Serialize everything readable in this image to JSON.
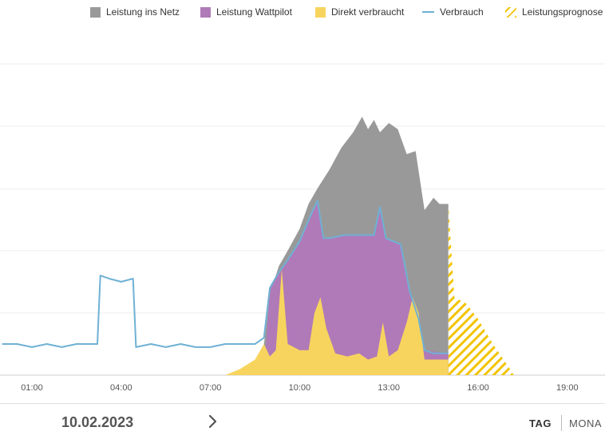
{
  "legend": {
    "items": [
      {
        "label": "Leistung ins Netz",
        "color": "#999999",
        "kind": "box"
      },
      {
        "label": "Leistung Wattpilot",
        "color": "#b07ab8",
        "kind": "box"
      },
      {
        "label": "Direkt verbraucht",
        "color": "#f7d45e",
        "kind": "box"
      },
      {
        "label": "Verbrauch",
        "color": "#6fb1d4",
        "kind": "line"
      },
      {
        "label": "Leistungsprognose",
        "color": "#f2c400",
        "kind": "hatch"
      }
    ]
  },
  "chart_data": {
    "type": "area",
    "x_ticks": [
      "01:00",
      "04:00",
      "07:00",
      "10:00",
      "13:00",
      "16:00",
      "19:00"
    ],
    "xlim": [
      "00:00",
      "20:20"
    ],
    "grid": true,
    "series": [
      {
        "name": "Verbrauch",
        "kind": "line",
        "color": "#6fb1d4",
        "points": [
          [
            0.0,
            0.1
          ],
          [
            0.5,
            0.1
          ],
          [
            1.0,
            0.09
          ],
          [
            1.5,
            0.1
          ],
          [
            2.0,
            0.09
          ],
          [
            2.5,
            0.1
          ],
          [
            3.0,
            0.1
          ],
          [
            3.2,
            0.1
          ],
          [
            3.3,
            0.32
          ],
          [
            3.6,
            0.31
          ],
          [
            4.0,
            0.3
          ],
          [
            4.4,
            0.31
          ],
          [
            4.5,
            0.09
          ],
          [
            5.0,
            0.1
          ],
          [
            5.5,
            0.09
          ],
          [
            6.0,
            0.1
          ],
          [
            6.5,
            0.09
          ],
          [
            7.0,
            0.09
          ],
          [
            7.5,
            0.1
          ],
          [
            8.0,
            0.1
          ],
          [
            8.5,
            0.1
          ],
          [
            8.8,
            0.12
          ],
          [
            9.0,
            0.28
          ],
          [
            9.3,
            0.33
          ],
          [
            9.6,
            0.37
          ],
          [
            10.0,
            0.43
          ],
          [
            10.4,
            0.52
          ],
          [
            10.6,
            0.56
          ],
          [
            10.8,
            0.44
          ],
          [
            11.0,
            0.44
          ],
          [
            11.5,
            0.45
          ],
          [
            12.0,
            0.45
          ],
          [
            12.5,
            0.45
          ],
          [
            12.7,
            0.54
          ],
          [
            12.9,
            0.44
          ],
          [
            13.4,
            0.42
          ],
          [
            13.7,
            0.27
          ],
          [
            14.0,
            0.18
          ],
          [
            14.2,
            0.08
          ],
          [
            14.5,
            0.07
          ],
          [
            15.0,
            0.07
          ]
        ]
      },
      {
        "name": "Direkt verbraucht",
        "kind": "area",
        "color": "#f7d45e",
        "points": [
          [
            7.5,
            0.0
          ],
          [
            8.0,
            0.02
          ],
          [
            8.5,
            0.05
          ],
          [
            8.8,
            0.1
          ],
          [
            9.0,
            0.06
          ],
          [
            9.2,
            0.08
          ],
          [
            9.4,
            0.34
          ],
          [
            9.6,
            0.1
          ],
          [
            10.0,
            0.08
          ],
          [
            10.3,
            0.08
          ],
          [
            10.5,
            0.2
          ],
          [
            10.7,
            0.25
          ],
          [
            10.9,
            0.15
          ],
          [
            11.2,
            0.07
          ],
          [
            11.6,
            0.06
          ],
          [
            12.0,
            0.07
          ],
          [
            12.3,
            0.05
          ],
          [
            12.6,
            0.06
          ],
          [
            12.8,
            0.17
          ],
          [
            13.0,
            0.06
          ],
          [
            13.3,
            0.08
          ],
          [
            13.6,
            0.17
          ],
          [
            13.8,
            0.25
          ],
          [
            14.0,
            0.2
          ],
          [
            14.2,
            0.05
          ],
          [
            14.5,
            0.05
          ],
          [
            15.0,
            0.05
          ]
        ]
      },
      {
        "name": "Leistung Wattpilot",
        "kind": "area",
        "color": "#b07ab8",
        "points": [
          [
            8.8,
            0.0
          ],
          [
            9.0,
            0.28
          ],
          [
            9.3,
            0.33
          ],
          [
            9.6,
            0.37
          ],
          [
            10.0,
            0.43
          ],
          [
            10.4,
            0.52
          ],
          [
            10.6,
            0.56
          ],
          [
            10.8,
            0.44
          ],
          [
            11.0,
            0.44
          ],
          [
            11.5,
            0.45
          ],
          [
            12.0,
            0.45
          ],
          [
            12.5,
            0.45
          ],
          [
            12.7,
            0.54
          ],
          [
            12.9,
            0.44
          ],
          [
            13.4,
            0.42
          ],
          [
            13.7,
            0.27
          ],
          [
            14.0,
            0.18
          ],
          [
            14.2,
            0.08
          ],
          [
            15.0,
            0.07
          ]
        ]
      },
      {
        "name": "Leistung ins Netz",
        "kind": "area",
        "color": "#999999",
        "points": [
          [
            8.8,
            0.1
          ],
          [
            9.0,
            0.26
          ],
          [
            9.3,
            0.35
          ],
          [
            9.6,
            0.4
          ],
          [
            10.0,
            0.47
          ],
          [
            10.3,
            0.55
          ],
          [
            10.6,
            0.6
          ],
          [
            11.0,
            0.66
          ],
          [
            11.4,
            0.73
          ],
          [
            11.8,
            0.78
          ],
          [
            12.1,
            0.83
          ],
          [
            12.3,
            0.79
          ],
          [
            12.5,
            0.82
          ],
          [
            12.7,
            0.78
          ],
          [
            13.0,
            0.81
          ],
          [
            13.3,
            0.79
          ],
          [
            13.6,
            0.71
          ],
          [
            13.9,
            0.72
          ],
          [
            14.2,
            0.53
          ],
          [
            14.5,
            0.57
          ],
          [
            14.7,
            0.55
          ],
          [
            15.0,
            0.55
          ]
        ]
      },
      {
        "name": "Leistungsprognose",
        "kind": "hatch",
        "color": "#f2c400",
        "points": [
          [
            15.0,
            0.55
          ],
          [
            15.2,
            0.25
          ],
          [
            15.6,
            0.23
          ],
          [
            16.0,
            0.18
          ],
          [
            16.5,
            0.1
          ],
          [
            17.0,
            0.03
          ],
          [
            17.2,
            0.0
          ]
        ]
      }
    ]
  },
  "footer": {
    "date": "10.02.2023",
    "next_icon": "chevron-right-icon",
    "tab_day": "TAG",
    "tab_month": "MONA"
  }
}
